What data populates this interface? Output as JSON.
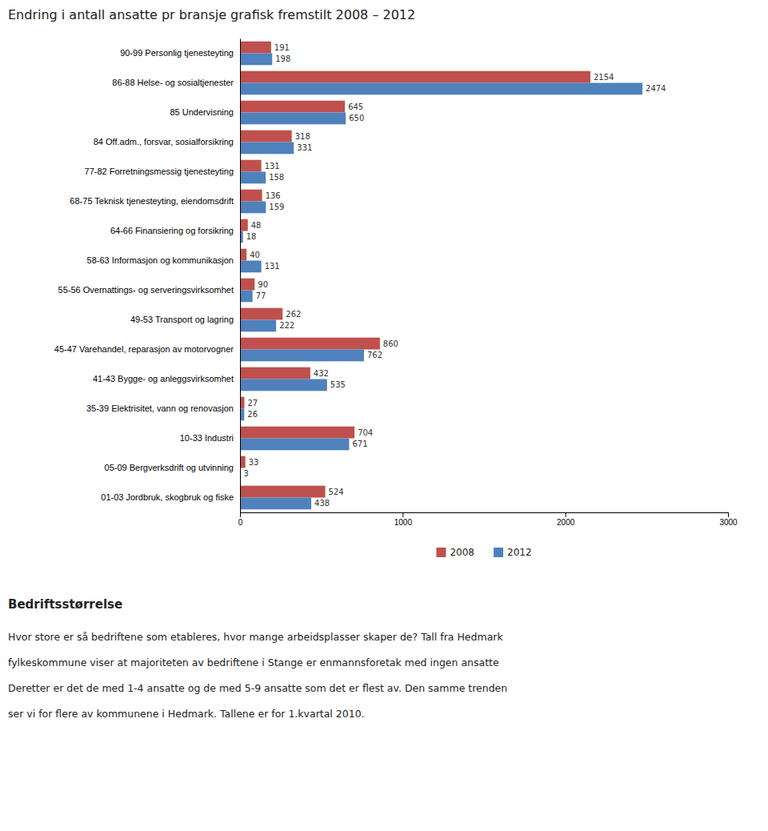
{
  "chart_data": {
    "type": "bar",
    "orientation": "horizontal",
    "title": "Endring i antall ansatte pr bransje grafisk fremstilt 2008 – 2012",
    "categories": [
      "90-99 Personlig tjenesteyting",
      "86-88 Helse- og sosialtjenester",
      "85 Undervisning",
      "84 Off.adm., forsvar, sosialforsikring",
      "77-82 Forretningsmessig tjenesteyting",
      "68-75 Teknisk tjenesteyting, eiendomsdrift",
      "64-66 Finansiering og forsikring",
      "58-63 Informasjon og kommunikasjon",
      "55-56 Overnattings- og serveringsvirksomhet",
      "49-53 Transport og lagring",
      "45-47 Varehandel, reparasjon av motorvogner",
      "41-43 Bygge- og anleggsvirksomhet",
      "35-39 Elektrisitet, vann og renovasjon",
      "10-33 Industri",
      "05-09 Bergverksdrift og utvinning",
      "01-03 Jordbruk, skogbruk og fiske"
    ],
    "series": [
      {
        "name": "2008",
        "color": "#C0504D",
        "values": [
          191,
          2154,
          645,
          318,
          131,
          136,
          48,
          40,
          90,
          262,
          860,
          432,
          27,
          704,
          33,
          524
        ]
      },
      {
        "name": "2012",
        "color": "#4F81BD",
        "values": [
          198,
          2474,
          650,
          331,
          158,
          159,
          18,
          131,
          77,
          222,
          762,
          535,
          26,
          671,
          3,
          438
        ]
      }
    ],
    "xlim": [
      0,
      3000
    ],
    "xticks": [
      0,
      1000,
      2000,
      3000
    ],
    "data_labels": true,
    "grid": false,
    "legend": "bottom",
    "annotations": [
      "Bedriftsstørrelse",
      "Hvor store er så bedriftene som etableres, hvor mange arbeidsplasser skaper de? Tall fra Hedmark",
      "fylkeskommune viser at majoriteten av bedriftene i Stange er enmannsforetak med ingen ansatte",
      "Deretter er det de med 1-4 ansatte og de med 5-9 ansatte som det er flest av. Den samme trenden",
      "ser vi for flere av kommunene i Hedmark. Tallene er for 1.kvartal 2010."
    ]
  }
}
